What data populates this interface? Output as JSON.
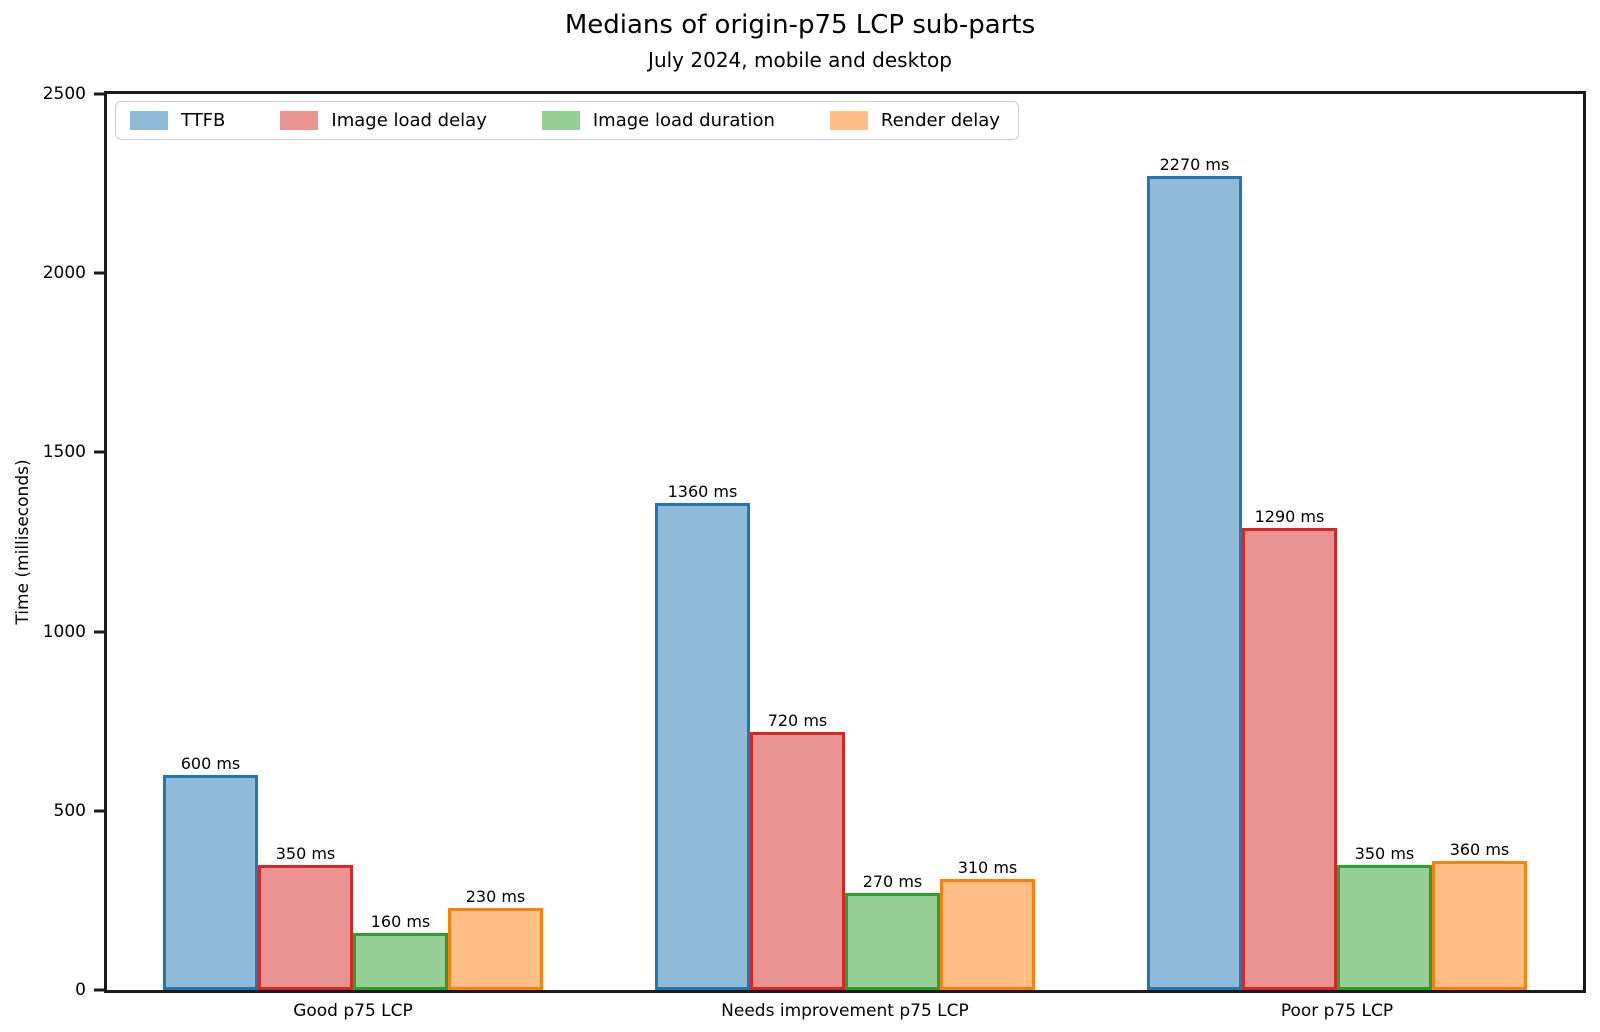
{
  "title": "Medians of origin-p75 LCP sub-parts",
  "subtitle": "July 2024, mobile and desktop",
  "chart_data": {
    "type": "bar",
    "title": "Medians of origin-p75 LCP sub-parts",
    "subtitle": "July 2024, mobile and desktop",
    "xlabel": "",
    "ylabel": "Time (milliseconds)",
    "ylim": [
      0,
      2500
    ],
    "yticks": [
      0,
      500,
      1000,
      1500,
      2000,
      2500
    ],
    "grid": false,
    "legend_position": "top-left",
    "value_suffix": " ms",
    "bar_fill_alpha": 0.5,
    "categories": [
      "Good p75 LCP",
      "Needs improvement p75 LCP",
      "Poor p75 LCP"
    ],
    "series": [
      {
        "name": "TTFB",
        "color": "#1f77b4",
        "values": [
          600,
          1360,
          2270
        ]
      },
      {
        "name": "Image load delay",
        "color": "#d62728",
        "values": [
          350,
          720,
          1290
        ]
      },
      {
        "name": "Image load duration",
        "color": "#2ca02c",
        "values": [
          160,
          270,
          350
        ]
      },
      {
        "name": "Render delay",
        "color": "#ff7f0e",
        "values": [
          230,
          310,
          360
        ]
      }
    ]
  }
}
